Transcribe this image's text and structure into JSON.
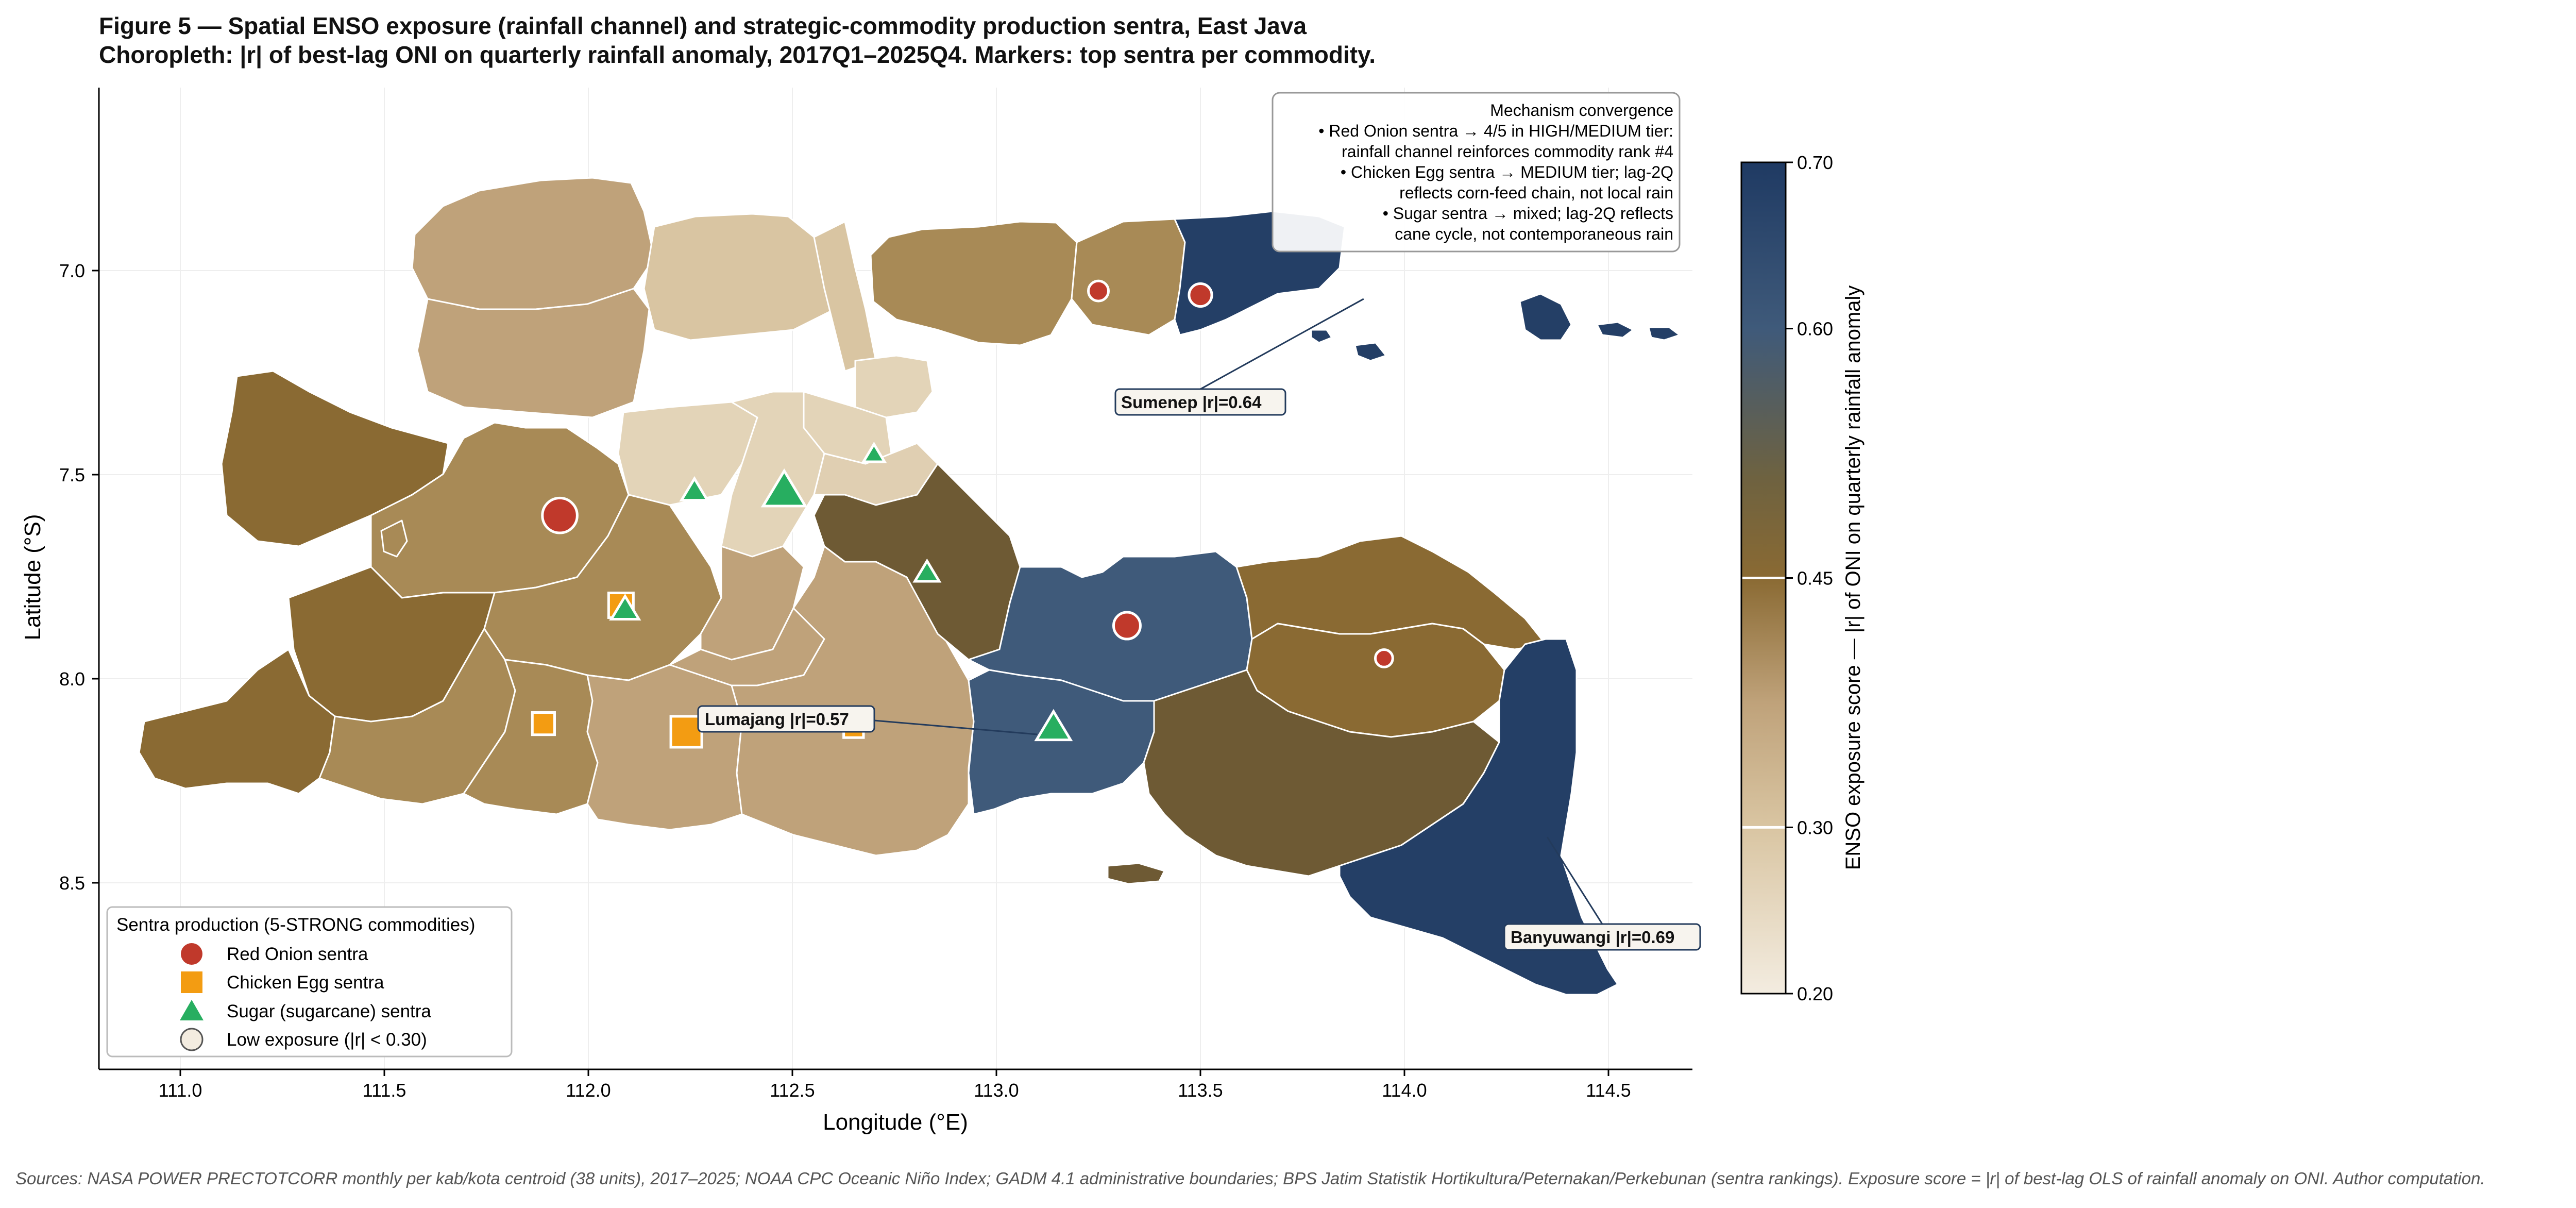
{
  "title": "Figure 5 — Spatial ENSO exposure (rainfall channel) and strategic-commodity production sentra, East Java",
  "subtitle": "Choropleth: |r| of best-lag ONI on quarterly rainfall anomaly, 2017Q1–2025Q4. Markers: top sentra per commodity.",
  "xlabel": "Longitude (°E)",
  "ylabel": "Latitude (°S)",
  "x_ticks": [
    "111.0",
    "111.5",
    "112.0",
    "112.5",
    "113.0",
    "113.5",
    "114.0",
    "114.5"
  ],
  "y_ticks": [
    "7.0",
    "7.5",
    "8.0",
    "8.5"
  ],
  "colorbar": {
    "label": "ENSO exposure score — |r| of ONI on quarterly rainfall anomaly",
    "ticks": [
      "0.70",
      "0.60",
      "0.45",
      "0.30",
      "0.20"
    ],
    "range": [
      0.2,
      0.7
    ],
    "threshold_lines": [
      0.3,
      0.45
    ],
    "colors": [
      "#f3ece0",
      "#d9c5a2",
      "#bfa27a",
      "#9c7c45",
      "#8a6a33",
      "#6e6240",
      "#3f5a7a",
      "#1f3a63"
    ]
  },
  "annotation": {
    "lines": [
      "Mechanism convergence",
      "• Red Onion sentra → 4/5 in HIGH/MEDIUM tier:",
      "rainfall channel reinforces commodity rank #4",
      "• Chicken Egg sentra → MEDIUM tier; lag-2Q",
      "reflects corn-feed chain, not local rain",
      "• Sugar sentra → mixed; lag-2Q reflects",
      "cane cycle, not contemporaneous rain"
    ]
  },
  "callouts": [
    {
      "text": "Sumenep  |r|=0.64",
      "lon": 113.9,
      "lat": 7.0
    },
    {
      "text": "Lumajang  |r|=0.57",
      "lon": 113.1,
      "lat": 8.13
    },
    {
      "text": "Banyuwangi  |r|=0.69",
      "lon": 114.35,
      "lat": 8.35
    }
  ],
  "legend": {
    "title": "Sentra production (5-STRONG commodities)",
    "items": [
      {
        "label": "Red Onion sentra",
        "shape": "circle",
        "color": "#c0392b"
      },
      {
        "label": "Chicken Egg sentra",
        "shape": "square",
        "color": "#f39c12"
      },
      {
        "label": "Sugar (sugarcane) sentra",
        "shape": "triangle",
        "color": "#27ae60"
      },
      {
        "label": "Low exposure (|r| < 0.30)",
        "shape": "circle-open",
        "color": "#f3ece0"
      }
    ]
  },
  "sentra": {
    "red_onion": [
      [
        111.93,
        7.6,
        1.3
      ],
      [
        113.32,
        7.87,
        1.0
      ],
      [
        113.25,
        7.05,
        0.75
      ],
      [
        113.5,
        7.06,
        0.85
      ],
      [
        113.95,
        7.95,
        0.65
      ]
    ],
    "chicken_egg": [
      [
        112.08,
        7.82,
        1.0
      ],
      [
        111.89,
        8.11,
        0.9
      ],
      [
        112.24,
        8.13,
        1.25
      ],
      [
        112.65,
        8.12,
        0.8
      ]
    ],
    "sugar": [
      [
        112.26,
        7.54,
        0.8
      ],
      [
        112.48,
        7.54,
        1.3
      ],
      [
        112.09,
        7.83,
        0.85
      ],
      [
        112.7,
        7.45,
        0.65
      ],
      [
        112.83,
        7.74,
        0.75
      ],
      [
        113.14,
        8.12,
        1.05
      ]
    ]
  },
  "source": "Sources: NASA POWER PRECTOTCORR monthly per kab/kota centroid (38 units), 2017–2025; NOAA CPC Oceanic Niño Index; GADM 4.1 administrative boundaries; BPS Jatim Statistik Hortikultura/Peternakan/Perkebunan (sentra rankings). Exposure score = |r| of best-lag OLS of rainfall anomaly on ONI. Author computation."
}
